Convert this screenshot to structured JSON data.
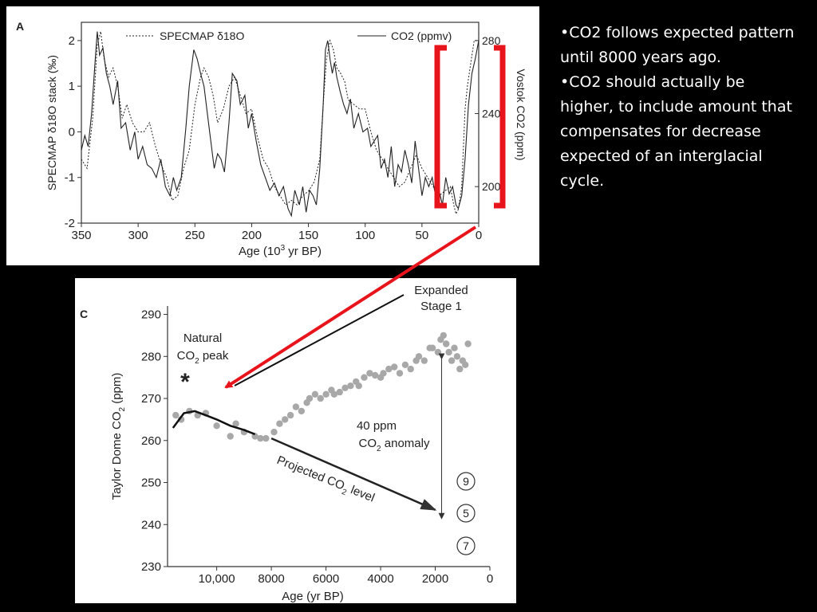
{
  "bullets": [
    "•CO2 follows expected pattern until 8000 years ago.",
    "•CO2 should actually be higher, to include amount that compensates for decrease expected of an interglacial cycle."
  ],
  "colors": {
    "highlight": "#e8141c",
    "background": "#000000",
    "panel": "#ffffff"
  },
  "chart_data": [
    {
      "type": "line",
      "panel_label": "A",
      "xlabel_main": "Age (10",
      "xlabel_sup": "3",
      "xlabel_end": " yr BP)",
      "ylabel_left": "SPECMAP δ18O stack (‰)",
      "ylabel_right": "Vostok CO2 (ppm)",
      "legend": [
        {
          "name": "SPECMAP δ18O",
          "style": "dotted"
        },
        {
          "name": "CO2 (ppmv)",
          "style": "solid"
        }
      ],
      "xlim": [
        350,
        0
      ],
      "ylim_left": [
        -2,
        2.4
      ],
      "ylim_right": [
        180,
        290
      ],
      "x_ticks": [
        350,
        300,
        250,
        200,
        150,
        100,
        50,
        0
      ],
      "y_ticks_left": [
        2,
        1,
        0,
        -1,
        -2
      ],
      "y_ticks_right": [
        280,
        240,
        200
      ],
      "series": [
        {
          "name": "SPECMAP δ18O",
          "axis": "left",
          "style": "dotted",
          "x": [
            350,
            345,
            340,
            336,
            333,
            330,
            326,
            322,
            318,
            314,
            310,
            305,
            300,
            295,
            290,
            285,
            280,
            275,
            270,
            265,
            260,
            255,
            250,
            245,
            242,
            238,
            234,
            230,
            225,
            220,
            215,
            210,
            205,
            200,
            195,
            190,
            185,
            180,
            175,
            170,
            165,
            160,
            155,
            150,
            145,
            140,
            137,
            134,
            131,
            128,
            125,
            122,
            118,
            115,
            110,
            105,
            100,
            95,
            90,
            85,
            80,
            75,
            70,
            65,
            60,
            55,
            50,
            45,
            40,
            35,
            30,
            25,
            22,
            20,
            18,
            15,
            12,
            10,
            7,
            4,
            0
          ],
          "values": [
            -0.6,
            -0.8,
            0.3,
            1.9,
            2.2,
            1.6,
            1.2,
            1.4,
            1.0,
            0.3,
            0.6,
            0.2,
            0.0,
            0.0,
            0.2,
            -0.3,
            -0.7,
            -1.0,
            -1.5,
            -1.4,
            -0.8,
            -0.4,
            0.6,
            1.2,
            1.4,
            1.2,
            0.8,
            0.2,
            0.5,
            1.0,
            1.2,
            0.8,
            0.4,
            0.5,
            -0.1,
            -0.6,
            -0.8,
            -1.2,
            -1.4,
            -1.6,
            -1.5,
            -1.6,
            -1.4,
            -1.3,
            -1.1,
            -0.6,
            0.6,
            1.6,
            2.0,
            1.8,
            1.4,
            1.3,
            1.1,
            0.7,
            0.6,
            0.5,
            0.5,
            0.0,
            -0.4,
            -0.6,
            -0.8,
            -1.0,
            -1.2,
            -1.1,
            -0.8,
            -0.5,
            -0.8,
            -1.0,
            -1.2,
            -1.4,
            -1.3,
            -1.2,
            -1.6,
            -1.8,
            -1.7,
            -1.2,
            0.5,
            1.0,
            1.5,
            2.0,
            2.0
          ]
        },
        {
          "name": "CO2 (ppmv)",
          "axis": "right",
          "style": "solid",
          "x": [
            350,
            347,
            344,
            341,
            338,
            336,
            334,
            331,
            328,
            325,
            322,
            318,
            315,
            311,
            307,
            303,
            300,
            296,
            292,
            288,
            284,
            280,
            276,
            272,
            269,
            266,
            262,
            258,
            255,
            251,
            248,
            245,
            242,
            239,
            236,
            233,
            230,
            227,
            224,
            220,
            217,
            213,
            210,
            206,
            203,
            200,
            196,
            192,
            188,
            184,
            180,
            176,
            172,
            168,
            165,
            162,
            158,
            155,
            152,
            149,
            146,
            143,
            140,
            137,
            135,
            133,
            131,
            129,
            127,
            125,
            122,
            119,
            116,
            113,
            110,
            106,
            102,
            98,
            95,
            92,
            89,
            86,
            83,
            80,
            77,
            74,
            71,
            68,
            65,
            62,
            59,
            56,
            53,
            50,
            47,
            44,
            41,
            38,
            35,
            32,
            29,
            26,
            23,
            20,
            18,
            15,
            12,
            9,
            6,
            3,
            0
          ],
          "values": [
            220,
            228,
            222,
            240,
            268,
            285,
            272,
            276,
            262,
            255,
            245,
            258,
            232,
            235,
            220,
            230,
            215,
            222,
            212,
            210,
            205,
            215,
            200,
            195,
            205,
            198,
            205,
            232,
            255,
            275,
            270,
            262,
            255,
            240,
            225,
            210,
            218,
            215,
            208,
            235,
            262,
            258,
            245,
            250,
            232,
            240,
            225,
            212,
            205,
            198,
            202,
            195,
            200,
            188,
            184,
            198,
            190,
            200,
            186,
            198,
            195,
            190,
            210,
            245,
            275,
            280,
            270,
            262,
            268,
            260,
            252,
            245,
            240,
            248,
            232,
            240,
            230,
            232,
            222,
            225,
            228,
            210,
            215,
            205,
            222,
            200,
            212,
            208,
            220,
            212,
            202,
            225,
            210,
            195,
            205,
            200,
            205,
            195,
            198,
            190,
            205,
            196,
            200,
            190,
            188,
            195,
            215,
            245,
            262,
            270,
            280
          ]
        }
      ],
      "annotation": "red bracket around last glacial cycle (approx. 35–0 ka)"
    },
    {
      "type": "scatter",
      "panel_label": "C",
      "xlabel": "Age (yr BP)",
      "ylabel_main": "Taylor Dome CO",
      "ylabel_sub": "2",
      "ylabel_end": " (ppm)",
      "xlim": [
        11800,
        0
      ],
      "ylim": [
        230,
        292
      ],
      "x_ticks": [
        10000,
        8000,
        6000,
        4000,
        2000,
        0
      ],
      "x_tick_labels": [
        "10,000",
        "8000",
        "6000",
        "4000",
        "2000",
        "0"
      ],
      "y_ticks": [
        290,
        280,
        270,
        260,
        250,
        240,
        230
      ],
      "expanded_label": [
        "Expanded",
        "Stage 1"
      ],
      "peak_label_line1": "Natural",
      "peak_label_co": "CO",
      "peak_label_sub": "2",
      "peak_label_end": " peak",
      "peak_marker": "*",
      "anomaly_label_line1": "40 ppm",
      "anomaly_label_co": "CO",
      "anomaly_label_sub": "2",
      "anomaly_label_end": " anomaly",
      "projection_label_main": "Projected CO",
      "projection_label_sub": "2",
      "projection_label_end": " level",
      "circled_numbers": [
        "9",
        "5",
        "7"
      ],
      "projected_trend": {
        "x": [
          11600,
          11200,
          10800,
          10400,
          10000,
          9500,
          9000,
          8600
        ],
        "values": [
          263,
          266.5,
          267,
          266,
          265,
          263.5,
          262.5,
          261.5
        ]
      },
      "projected_arrow": {
        "x_start": 8000,
        "y_start": 260.5,
        "x_end": 2000,
        "y_end": 243.5
      },
      "anomaly_span": {
        "x": 2000,
        "y_top": 280,
        "y_bottom": 242
      },
      "points": {
        "x": [
          11500,
          11300,
          11000,
          10700,
          10400,
          10000,
          9500,
          9300,
          9000,
          8600,
          8400,
          8200,
          7900,
          7700,
          7500,
          7300,
          7100,
          6900,
          6700,
          6600,
          6400,
          6200,
          6000,
          5800,
          5700,
          5500,
          5300,
          5100,
          4900,
          4800,
          4600,
          4400,
          4200,
          4000,
          3900,
          3700,
          3500,
          3300,
          3100,
          2900,
          2700,
          2600,
          2400,
          2200,
          2100,
          1900,
          1800,
          1700,
          1600,
          1500,
          1400,
          1300,
          1200,
          1100,
          1000,
          900,
          800
        ],
        "values": [
          266,
          265,
          267,
          266,
          266.5,
          263.5,
          261,
          264,
          262,
          261,
          260.5,
          260.5,
          262,
          264,
          265,
          266,
          268,
          267,
          269,
          270,
          271,
          270,
          271,
          272,
          271,
          271.5,
          272.5,
          273,
          274,
          273,
          275,
          276,
          275.5,
          275,
          276,
          277,
          277.5,
          276,
          278,
          277,
          279,
          280,
          279,
          282,
          282,
          281,
          284,
          285,
          283,
          281,
          279,
          282,
          280,
          277,
          279,
          278,
          283
        ]
      }
    }
  ]
}
